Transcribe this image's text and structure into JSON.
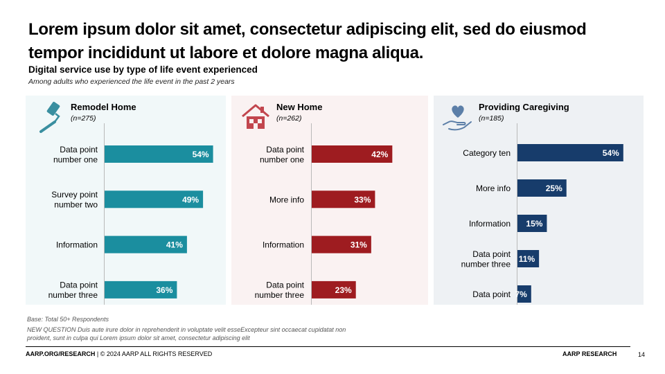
{
  "headline": "Lorem ipsum dolor sit amet, consectetur adipiscing elit, sed do eiusmod tempor incididunt ut labore et dolore magna aliqua.",
  "subtitle": "Digital service use by type of life event experienced",
  "subnote": "Among adults who experienced the life event in the past 2 years",
  "panels": [
    {
      "title": "Remodel Home",
      "n": "(n=275)",
      "icon": "paint-roller-icon"
    },
    {
      "title": "New Home",
      "n": "(n=262)",
      "icon": "house-icon"
    },
    {
      "title": "Providing Caregiving",
      "n": "(n=185)",
      "icon": "heart-hand-icon"
    }
  ],
  "chart_data": [
    {
      "type": "bar",
      "title": "Remodel Home",
      "categories": [
        "Data point number one",
        "Survey point number two",
        "Information",
        "Data point number three"
      ],
      "values": [
        54,
        49,
        41,
        36
      ],
      "value_labels": [
        "54%",
        "49%",
        "41%",
        "36%"
      ],
      "color": "#1b8e9f"
    },
    {
      "type": "bar",
      "title": "New Home",
      "categories": [
        "Data point number one",
        "More info",
        "Information",
        "Data point number three"
      ],
      "values": [
        42,
        33,
        31,
        23
      ],
      "value_labels": [
        "42%",
        "33%",
        "31%",
        "23%"
      ],
      "color": "#9e1c20"
    },
    {
      "type": "bar",
      "title": "Providing Caregiving",
      "categories": [
        "Category ten",
        "More info",
        "Information",
        "Data point number three",
        "Data point"
      ],
      "values": [
        54,
        25,
        15,
        11,
        7
      ],
      "value_labels": [
        "54%",
        "25%",
        "15%",
        "11%",
        "7%"
      ],
      "color": "#173c6b"
    }
  ],
  "footer": {
    "base": "Base: Total 50+ Respondents",
    "note": "NEW QUESTION Duis aute irure dolor in reprehenderit in voluptate velit esseExcepteur sint occaecat cupidatat non proident, sunt in culpa qui Lorem ipsum dolor sit amet, consectetur adipiscing elit",
    "left_bold": "AARP.ORG/RESEARCH",
    "left_rest": " | © 2024 AARP ALL RIGHTS RESERVED",
    "right": "AARP RESEARCH",
    "page": "14"
  }
}
